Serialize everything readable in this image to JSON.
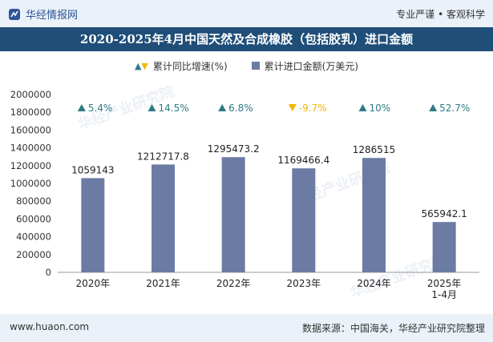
{
  "header": {
    "brand": "华经情报网",
    "tagline": "专业严谨 • 客观科学"
  },
  "title": "2020-2025年4月中国天然及合成橡胶（包括胶乳）进口金额",
  "legend": {
    "growth_label": "累计同比增速(%)",
    "amount_label": "累计进口金额(万美元)"
  },
  "watermark": "华经产业研究院",
  "footer": {
    "site": "www.huaon.com",
    "source": "数据来源：中国海关，华经产业研究院整理"
  },
  "colors": {
    "bar": "#6b7ba3",
    "up": "#2e7a86",
    "down": "#f2b807",
    "title_bg": "#1f4e79"
  },
  "chart_data": {
    "type": "bar",
    "categories": [
      "2020年",
      "2021年",
      "2022年",
      "2023年",
      "2024年",
      "2025年\n1-4月"
    ],
    "series": [
      {
        "name": "累计进口金额(万美元)",
        "values": [
          1059143,
          1212717.8,
          1295473.2,
          1169466.4,
          1286515,
          565942.1
        ],
        "labels": [
          "1059143",
          "1212717.8",
          "1295473.2",
          "1169466.4",
          "1286515",
          "565942.1"
        ]
      },
      {
        "name": "累计同比增速(%)",
        "values": [
          5.4,
          14.5,
          6.8,
          -9.7,
          10,
          52.7
        ],
        "labels": [
          "5.4%",
          "14.5%",
          "6.8%",
          "-9.7%",
          "10%",
          "52.7%"
        ]
      }
    ],
    "yticks": [
      "0",
      "200000",
      "400000",
      "600000",
      "800000",
      "1000000",
      "1200000",
      "1400000",
      "1600000",
      "1800000",
      "2000000"
    ],
    "ylim": [
      0,
      2000000
    ],
    "grid": false
  }
}
